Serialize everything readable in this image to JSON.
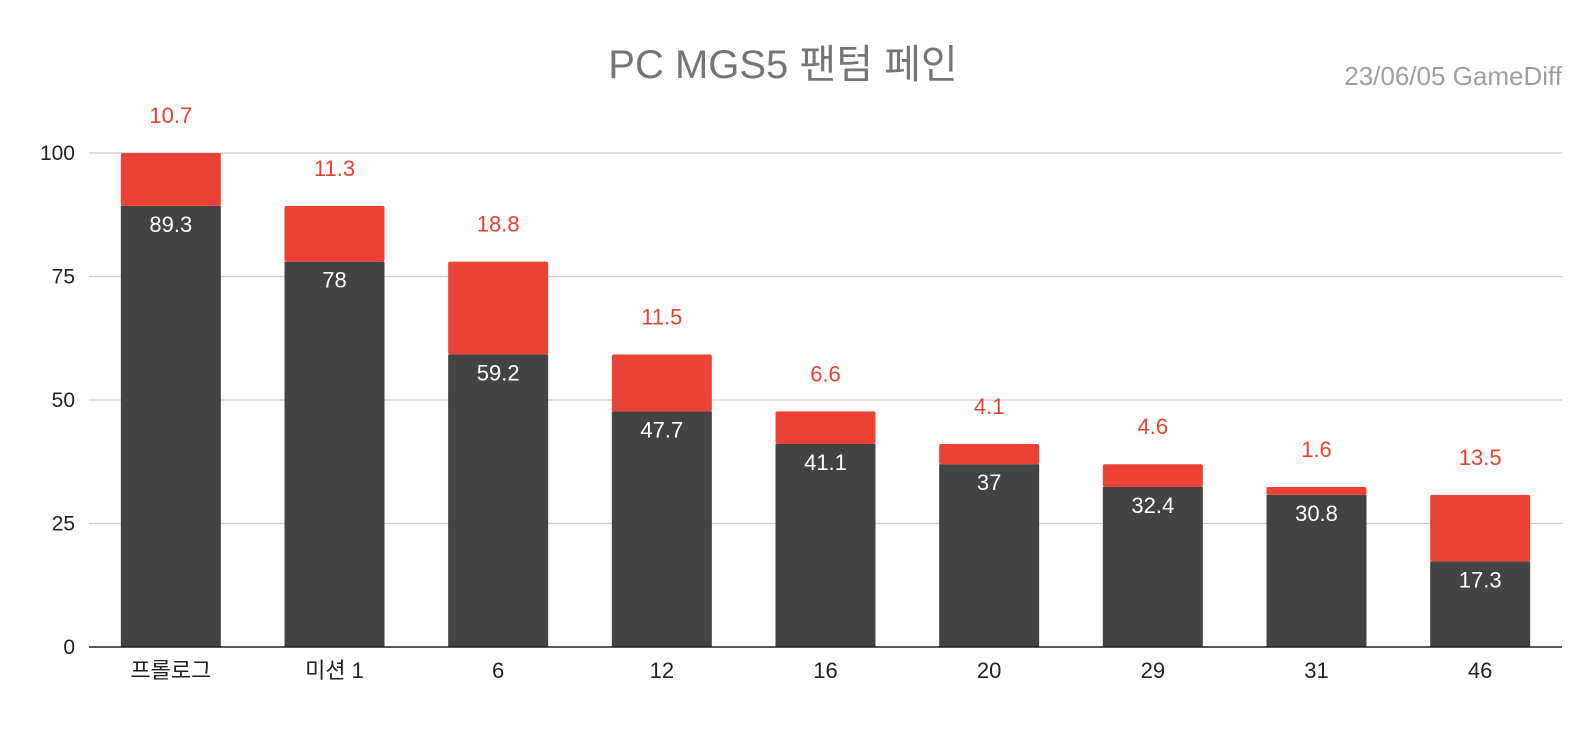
{
  "chart_data": {
    "type": "bar",
    "stacked": true,
    "title": "PC MGS5 팬텀 페인",
    "source": "23/06/05  GameDiff",
    "xlabel": "",
    "ylabel": "",
    "ylim": [
      0,
      100
    ],
    "yticks": [
      "0",
      "25",
      "50",
      "75",
      "100"
    ],
    "grid": true,
    "legend": "none",
    "categories": [
      "프롤로그",
      "미션 1",
      "6",
      "12",
      "16",
      "20",
      "29",
      "31",
      "46"
    ],
    "series": [
      {
        "color": "#434343",
        "values": [
          89.3,
          78,
          59.2,
          47.7,
          41.1,
          37,
          32.4,
          30.8,
          17.3
        ]
      },
      {
        "color": "#ea4335",
        "values": [
          10.7,
          11.3,
          18.8,
          11.5,
          6.6,
          4.1,
          4.6,
          1.6,
          13.5
        ]
      }
    ],
    "value_labels": {
      "bottom": [
        "89.3",
        "78",
        "59.2",
        "47.7",
        "41.1",
        "37",
        "32.4",
        "30.8",
        "17.3"
      ],
      "top": [
        "10.7",
        "11.3",
        "18.8",
        "11.5",
        "6.6",
        "4.1",
        "4.6",
        "1.6",
        "13.5"
      ]
    }
  }
}
